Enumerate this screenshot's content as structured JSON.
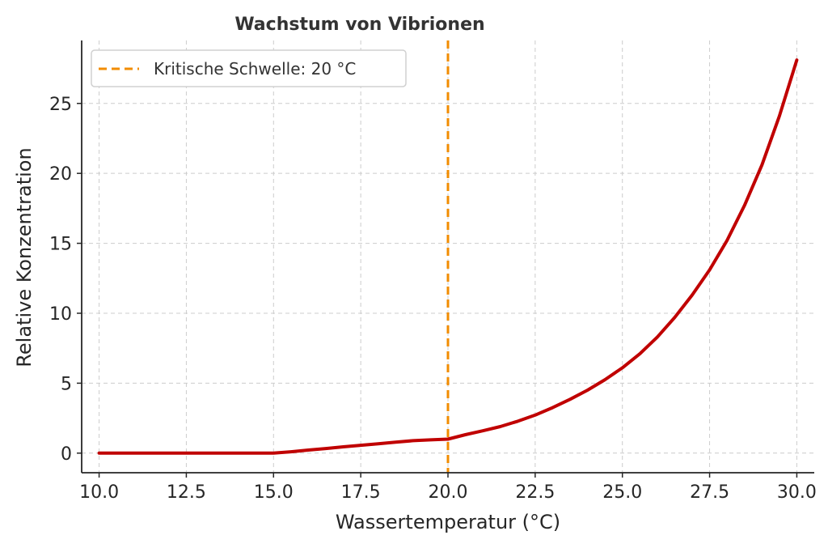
{
  "chart_data": {
    "type": "line",
    "title": "Wachstum von Vibrionen",
    "xlabel": "Wassertemperatur (°C)",
    "ylabel": "Relative Konzentration",
    "xlim": [
      9.5,
      30.5
    ],
    "ylim": [
      -1.4,
      29.5
    ],
    "x_ticks": [
      10.0,
      12.5,
      15.0,
      17.5,
      20.0,
      22.5,
      25.0,
      27.5,
      30.0
    ],
    "x_tick_labels": [
      "10.0",
      "12.5",
      "15.0",
      "17.5",
      "20.0",
      "22.5",
      "25.0",
      "27.5",
      "30.0"
    ],
    "y_ticks": [
      0,
      5,
      10,
      15,
      20,
      25
    ],
    "y_tick_labels": [
      "0",
      "5",
      "10",
      "15",
      "20",
      "25"
    ],
    "grid": true,
    "legend_position": "top-left",
    "series": [
      {
        "name": "",
        "color": "#c00000",
        "x": [
          10,
          11,
          12,
          13,
          14,
          15,
          15.5,
          16,
          16.5,
          17,
          17.5,
          18,
          18.5,
          19,
          19.5,
          20,
          20.5,
          21,
          21.5,
          22,
          22.5,
          23,
          23.5,
          24,
          24.5,
          25,
          25.5,
          26,
          26.5,
          27,
          27.5,
          28,
          28.5,
          29,
          29.5,
          30
        ],
        "y": [
          0,
          0,
          0,
          0,
          0,
          0,
          0.1,
          0.22,
          0.33,
          0.45,
          0.56,
          0.67,
          0.78,
          0.89,
          0.95,
          1.0,
          1.32,
          1.6,
          1.9,
          2.28,
          2.72,
          3.25,
          3.85,
          4.5,
          5.25,
          6.1,
          7.1,
          8.3,
          9.7,
          11.3,
          13.1,
          15.2,
          17.7,
          20.6,
          24.1,
          28.1
        ]
      }
    ],
    "threshold": {
      "label": "Kritische Schwelle: 20 °C",
      "x": 20,
      "color": "#f28c00"
    }
  }
}
